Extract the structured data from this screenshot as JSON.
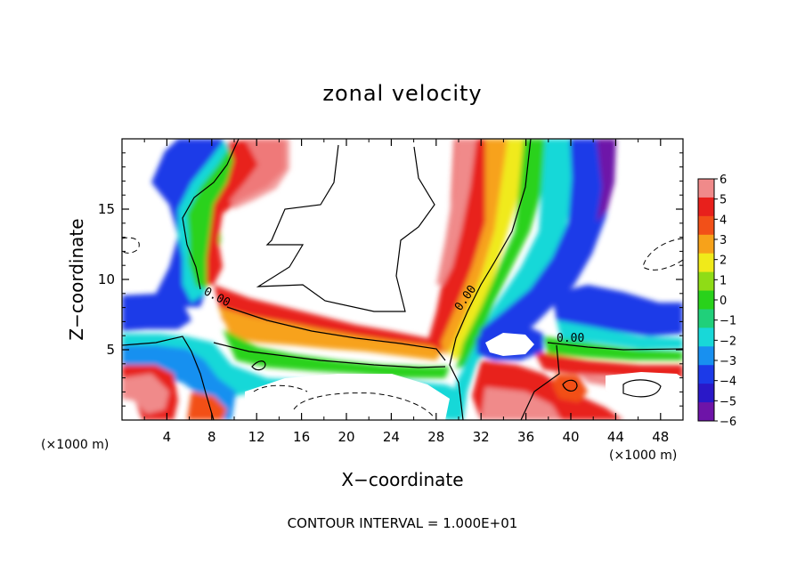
{
  "chart_data": {
    "type": "heatmap",
    "title": "zonal velocity",
    "xlabel": "X−coordinate",
    "ylabel": "Z−coordinate",
    "x_unit_left": "(×1000 m)",
    "x_unit_right": "(×1000 m)",
    "xlim": [
      0,
      50
    ],
    "ylim": [
      0,
      20
    ],
    "x_ticks": [
      4,
      8,
      12,
      16,
      20,
      24,
      28,
      32,
      36,
      40,
      44,
      48
    ],
    "y_ticks": [
      5,
      10,
      15
    ],
    "colorbar": {
      "levels": [
        6,
        5,
        4,
        3,
        2,
        1,
        0,
        -1,
        -2,
        -3,
        -4,
        -5,
        -6
      ],
      "labels": [
        "6",
        "5",
        "4",
        "3",
        "2",
        "1",
        "0",
        "−1",
        "−2",
        "−3",
        "−4",
        "−5",
        "−6"
      ],
      "colors": [
        "#f08a8a",
        "#e8201c",
        "#f25018",
        "#f7a21a",
        "#f0ea1a",
        "#8fdc16",
        "#29d21b",
        "#20d07a",
        "#18d8d8",
        "#1890f0",
        "#1c3ae8",
        "#2a18c8",
        "#6e14a8"
      ]
    },
    "contour_label": "0.00",
    "contour_interval_text": "CONTOUR INTERVAL = 1.000E+01"
  }
}
